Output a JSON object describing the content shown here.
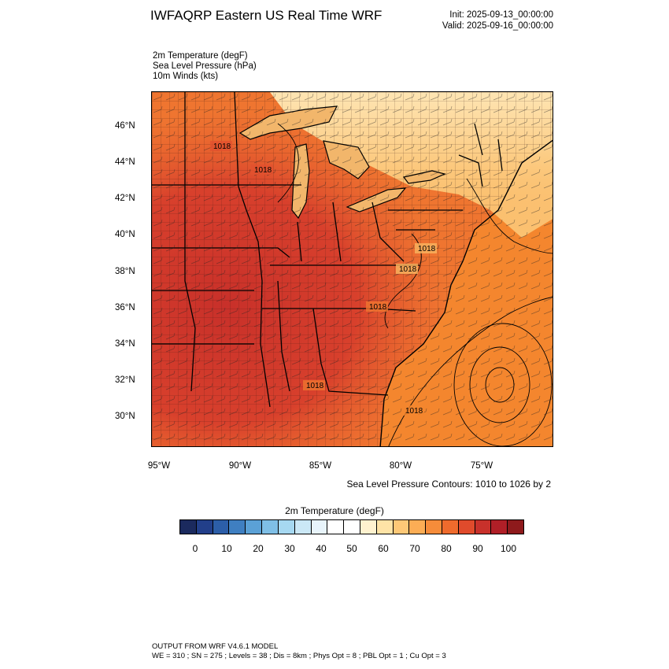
{
  "header": {
    "title": "IWFAQRP Eastern US Real Time WRF",
    "init": "Init: 2025-09-13_00:00:00",
    "valid": "Valid: 2025-09-16_00:00:00"
  },
  "fields": [
    "2m Temperature   (degF)",
    "Sea Level Pressure   (hPa)",
    "10m Winds   (kts)"
  ],
  "map": {
    "lat_labels": [
      "46°N",
      "44°N",
      "42°N",
      "40°N",
      "38°N",
      "36°N",
      "34°N",
      "32°N",
      "30°N"
    ],
    "lon_labels": [
      "95°W",
      "90°W",
      "85°W",
      "80°W",
      "75°W"
    ],
    "pressure_labels": [
      "1018",
      "1018",
      "1018",
      "1018",
      "1018",
      "1018",
      "1018"
    ],
    "extent": {
      "lon": [
        -95.5,
        -70.5
      ],
      "lat": [
        28.5,
        47.8
      ]
    },
    "colors": {
      "land_hot": "#d1352a",
      "land_warm": "#e2512e",
      "land_mid": "#ef7530",
      "ocean": "#f4862e",
      "north_cool": "#fbc272",
      "far_north": "#fee2ad",
      "lakes": "#f2b66b"
    }
  },
  "contour_note": "Sea Level Pressure Contours: 1010 to 1026 by 2",
  "colorbar": {
    "title": "2m Temperature  (degF)",
    "ticks": [
      "0",
      "10",
      "20",
      "30",
      "40",
      "50",
      "60",
      "70",
      "80",
      "90",
      "100"
    ],
    "colors": [
      "#1b2a5e",
      "#223f8a",
      "#2c5ea8",
      "#3f7fc1",
      "#5ba1d6",
      "#7fbfe6",
      "#a6d8f1",
      "#cbe8f6",
      "#e8f4fb",
      "#ffffff",
      "#ffffff",
      "#fff2cf",
      "#fee3a6",
      "#fdc877",
      "#fcad55",
      "#f68c3a",
      "#ef6b2d",
      "#e04b2c",
      "#c8312b",
      "#b01f27",
      "#8e1a1c"
    ]
  },
  "footer": {
    "line1": "OUTPUT FROM WRF V4.6.1 MODEL",
    "line2": "WE = 310 ; SN = 275 ; Levels = 38 ; Dis = 8km ; Phys Opt = 8 ; PBL Opt = 1 ; Cu Opt = 3"
  }
}
